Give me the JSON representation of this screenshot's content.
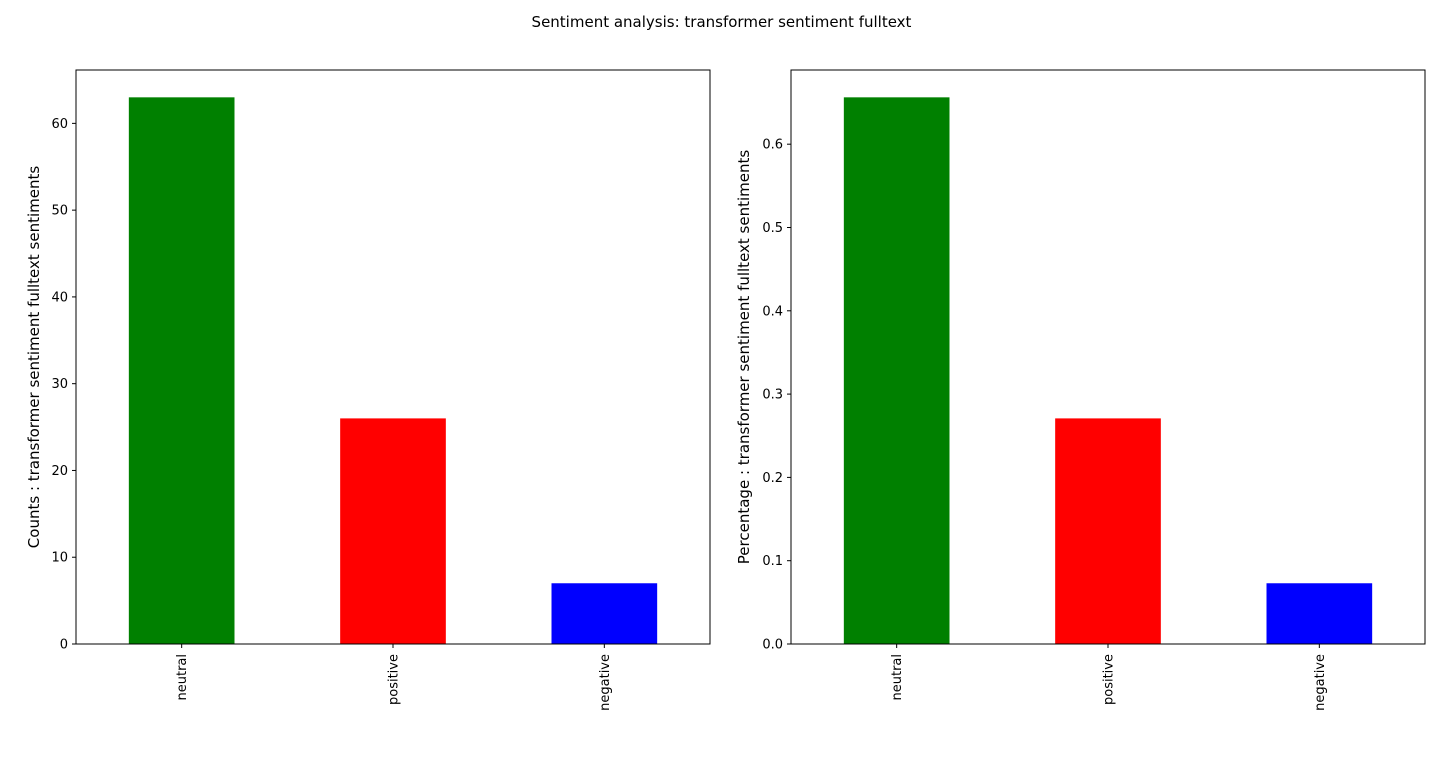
{
  "title": "Sentiment analysis: transformer sentiment fulltext",
  "chart_data": [
    {
      "type": "bar",
      "categories": [
        "neutral",
        "positive",
        "negative"
      ],
      "values": [
        63,
        26,
        7
      ],
      "colors": [
        "#008000",
        "#ff0000",
        "#0000ff"
      ],
      "ylabel": "Counts : transformer sentiment fulltext sentiments",
      "xlabel": "",
      "ylim": [
        0,
        66.15
      ],
      "yticks": [
        0,
        10,
        20,
        30,
        40,
        50,
        60
      ],
      "ytick_labels": [
        "0",
        "10",
        "20",
        "30",
        "40",
        "50",
        "60"
      ],
      "grid": false
    },
    {
      "type": "bar",
      "categories": [
        "neutral",
        "positive",
        "negative"
      ],
      "values": [
        0.65625,
        0.270833,
        0.072917
      ],
      "colors": [
        "#008000",
        "#ff0000",
        "#0000ff"
      ],
      "ylabel": "Percentage : transformer sentiment fulltext sentiments",
      "xlabel": "",
      "ylim": [
        0,
        0.6890625
      ],
      "yticks": [
        0.0,
        0.1,
        0.2,
        0.3,
        0.4,
        0.5,
        0.6
      ],
      "ytick_labels": [
        "0.0",
        "0.1",
        "0.2",
        "0.3",
        "0.4",
        "0.5",
        "0.6"
      ],
      "grid": false
    }
  ]
}
